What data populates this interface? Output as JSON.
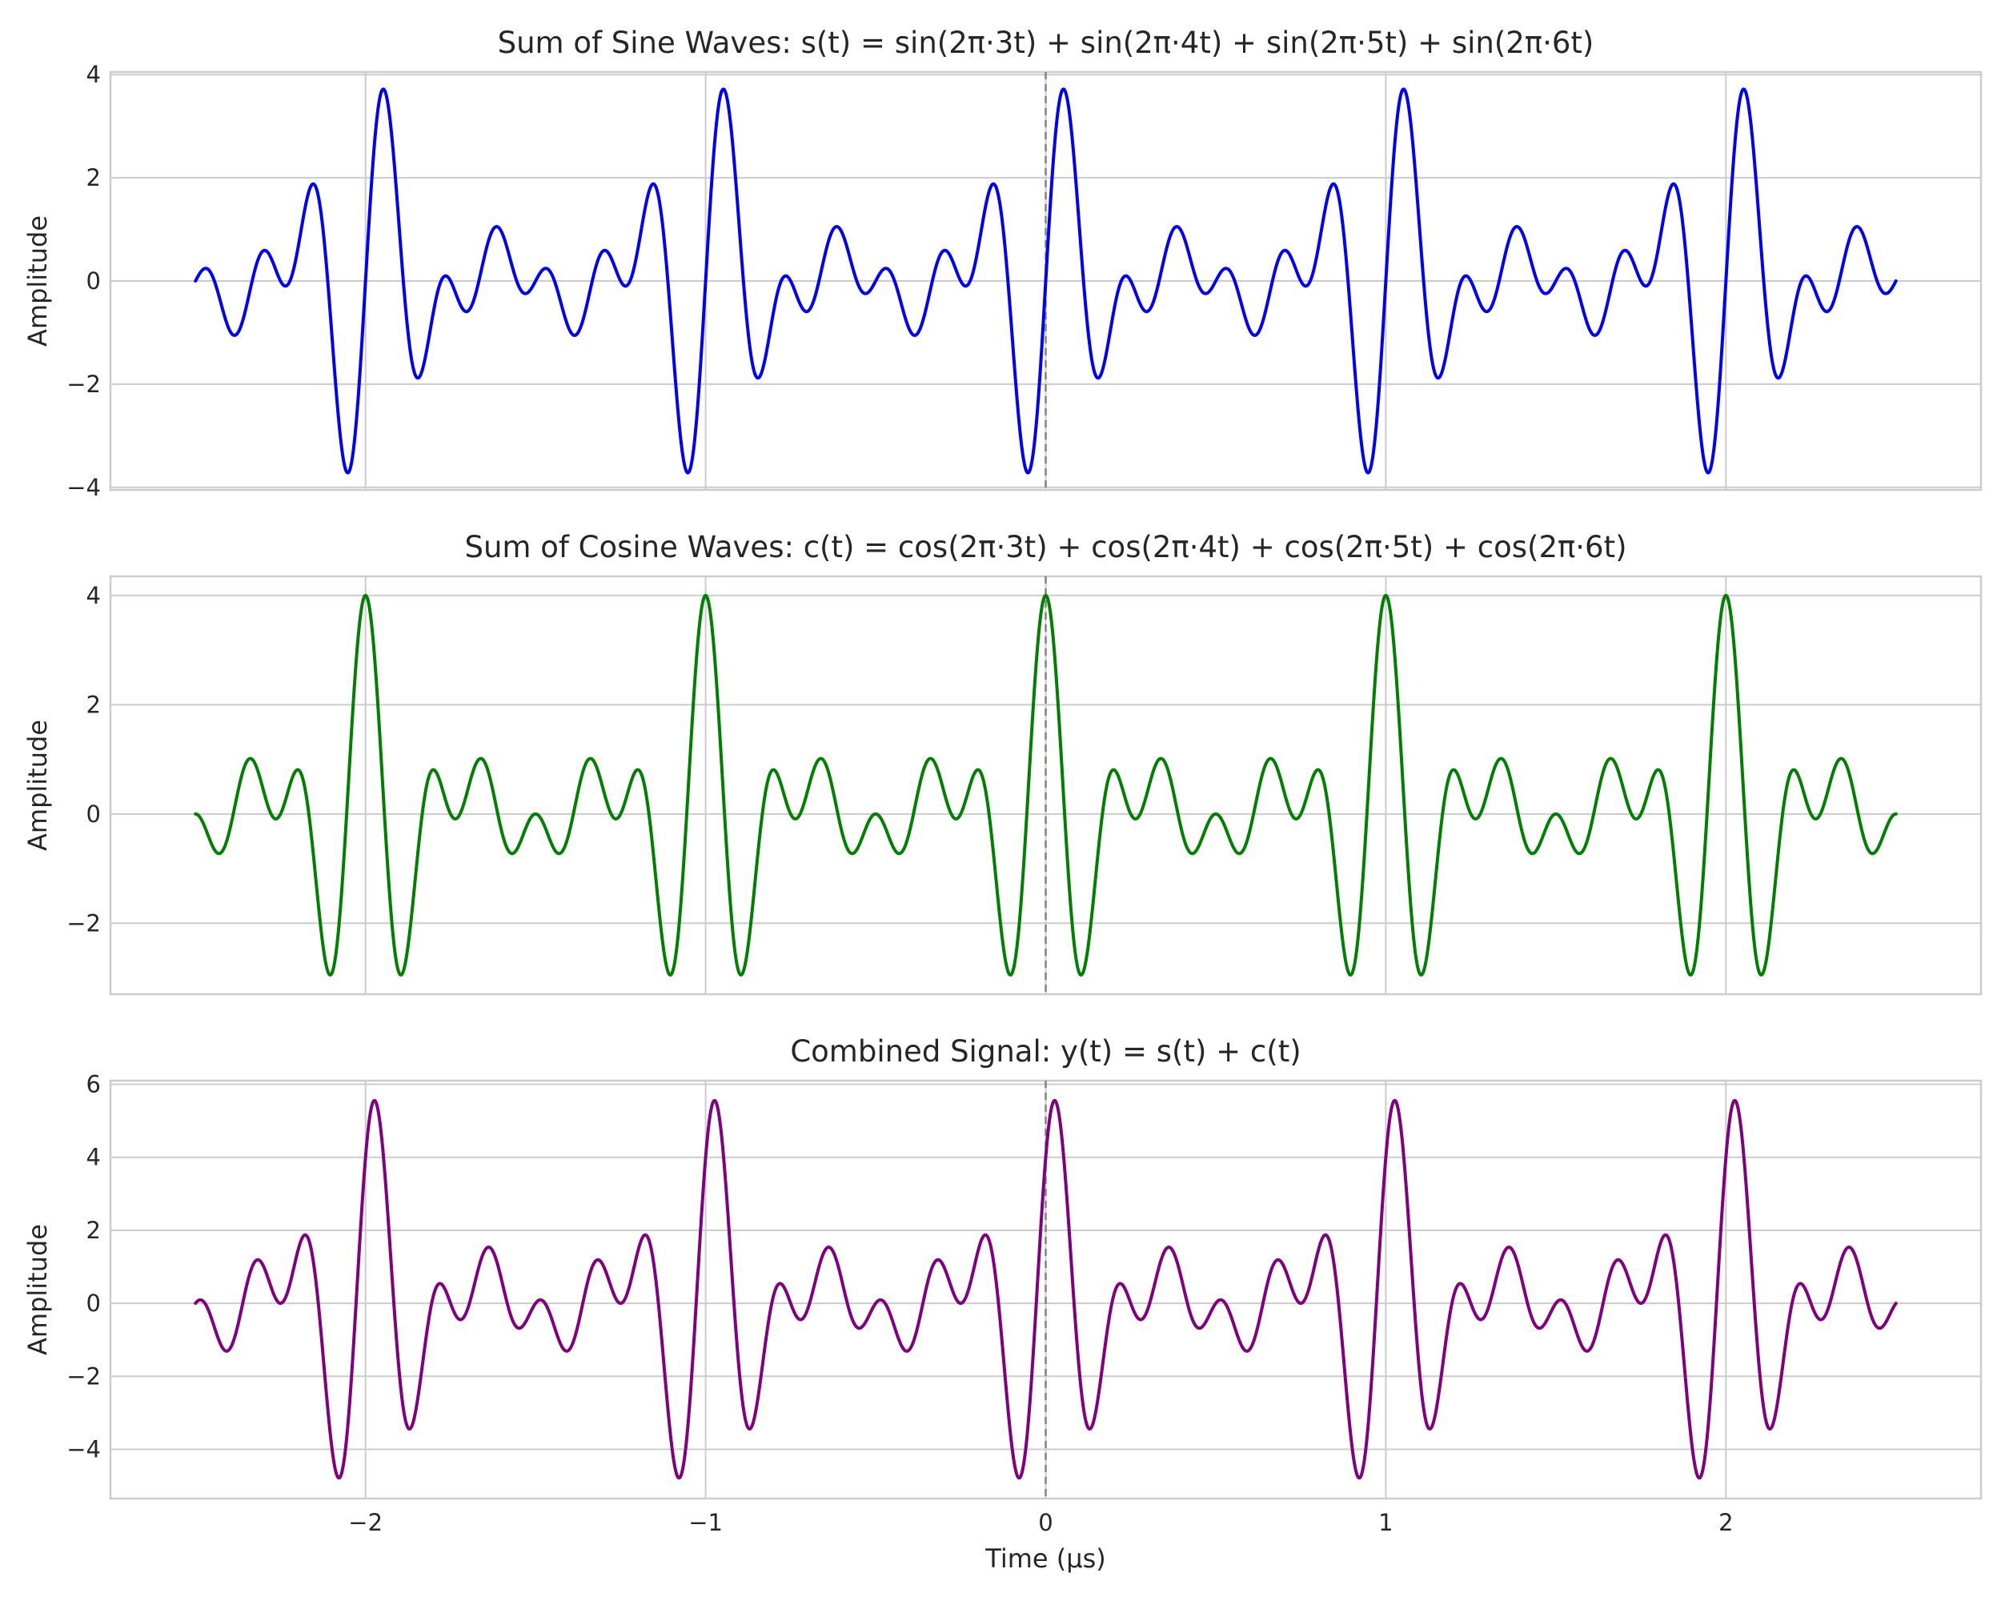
{
  "chart_data": [
    {
      "type": "line",
      "title": "Sum of Sine Waves: s(t) = sin(2π·3t) + sin(2π·4t) + sin(2π·5t) + sin(2π·6t)",
      "xlabel": "",
      "ylabel": "Amplitude",
      "xlim": [
        -2.75,
        2.75
      ],
      "ylim": [
        -4.05,
        4.05
      ],
      "x_range": [
        -2.5,
        2.5
      ],
      "x_ticks": [
        -2,
        -1,
        0,
        1,
        2
      ],
      "y_ticks": [
        -4,
        -2,
        0,
        2,
        4
      ],
      "y_tick_labels": [
        "−4",
        "−2",
        "0",
        "2",
        "4"
      ],
      "x_tick_labels": [],
      "grid": true,
      "vertical_line": {
        "x": 0,
        "style": "dashed",
        "color": "#808080"
      },
      "series": [
        {
          "function": "sin",
          "frequencies": [
            3,
            4,
            5,
            6
          ],
          "color": "#0000ff"
        }
      ]
    },
    {
      "type": "line",
      "title": "Sum of Cosine Waves: c(t) = cos(2π·3t) + cos(2π·4t) + cos(2π·5t) + cos(2π·6t)",
      "xlabel": "",
      "ylabel": "Amplitude",
      "xlim": [
        -2.75,
        2.75
      ],
      "ylim": [
        -3.3,
        4.35
      ],
      "x_range": [
        -2.5,
        2.5
      ],
      "x_ticks": [
        -2,
        -1,
        0,
        1,
        2
      ],
      "y_ticks": [
        -2,
        0,
        2,
        4
      ],
      "y_tick_labels": [
        "−2",
        "0",
        "2",
        "4"
      ],
      "x_tick_labels": [],
      "grid": true,
      "vertical_line": {
        "x": 0,
        "style": "dashed",
        "color": "#808080"
      },
      "series": [
        {
          "function": "cos",
          "frequencies": [
            3,
            4,
            5,
            6
          ],
          "color": "#008000"
        }
      ]
    },
    {
      "type": "line",
      "title": "Combined Signal: y(t) = s(t) + c(t)",
      "xlabel": "Time (μs)",
      "ylabel": "Amplitude",
      "xlim": [
        -2.75,
        2.75
      ],
      "ylim": [
        -5.35,
        6.1
      ],
      "x_range": [
        -2.5,
        2.5
      ],
      "x_ticks": [
        -2,
        -1,
        0,
        1,
        2
      ],
      "y_ticks": [
        -4,
        -2,
        0,
        2,
        4,
        6
      ],
      "y_tick_labels": [
        "−4",
        "−2",
        "0",
        "2",
        "4",
        "6"
      ],
      "x_tick_labels": [
        "−2",
        "−1",
        "0",
        "1",
        "2"
      ],
      "grid": true,
      "vertical_line": {
        "x": 0,
        "style": "dashed",
        "color": "#808080"
      },
      "series": [
        {
          "function": "sin+cos",
          "frequencies": [
            3,
            4,
            5,
            6
          ],
          "color": "#800080"
        }
      ]
    }
  ]
}
